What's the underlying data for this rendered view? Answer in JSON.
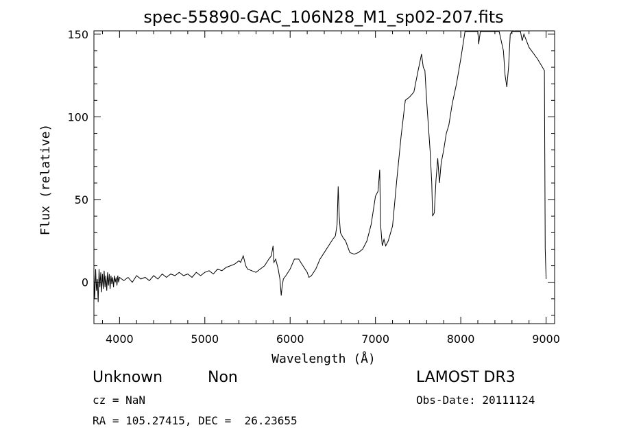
{
  "chart_data": {
    "type": "line",
    "title": "spec-55890-GAC_106N28_M1_sp02-207.fits",
    "xlabel": "Wavelength (Å)",
    "ylabel": "Flux (relative)",
    "xlim": [
      3700,
      9100
    ],
    "ylim": [
      -25,
      152
    ],
    "xticks": [
      4000,
      5000,
      6000,
      7000,
      8000,
      9000
    ],
    "yticks": [
      0,
      50,
      100,
      150
    ],
    "x_minor_step": 200,
    "y_minor_step": 10,
    "grid": false,
    "line_color": "#000000",
    "series": [
      {
        "points": [
          [
            3700,
            5
          ],
          [
            3710,
            -10
          ],
          [
            3720,
            8
          ],
          [
            3730,
            -5
          ],
          [
            3740,
            2
          ],
          [
            3750,
            -12
          ],
          [
            3760,
            8
          ],
          [
            3770,
            -3
          ],
          [
            3780,
            6
          ],
          [
            3790,
            -6
          ],
          [
            3800,
            5
          ],
          [
            3810,
            -4
          ],
          [
            3820,
            7
          ],
          [
            3830,
            -3
          ],
          [
            3840,
            4
          ],
          [
            3850,
            -5
          ],
          [
            3860,
            6
          ],
          [
            3870,
            -2
          ],
          [
            3880,
            5
          ],
          [
            3890,
            -4
          ],
          [
            3900,
            4
          ],
          [
            3910,
            -1
          ],
          [
            3920,
            3
          ],
          [
            3930,
            -3
          ],
          [
            3940,
            4
          ],
          [
            3950,
            0
          ],
          [
            3960,
            3
          ],
          [
            3970,
            -2
          ],
          [
            3980,
            4
          ],
          [
            3990,
            0
          ],
          [
            4000,
            3
          ],
          [
            4050,
            1
          ],
          [
            4100,
            3
          ],
          [
            4150,
            0
          ],
          [
            4200,
            4
          ],
          [
            4250,
            2
          ],
          [
            4300,
            3
          ],
          [
            4350,
            1
          ],
          [
            4400,
            4
          ],
          [
            4450,
            2
          ],
          [
            4500,
            5
          ],
          [
            4550,
            3
          ],
          [
            4600,
            5
          ],
          [
            4650,
            4
          ],
          [
            4700,
            6
          ],
          [
            4750,
            4
          ],
          [
            4800,
            5
          ],
          [
            4850,
            3
          ],
          [
            4900,
            6
          ],
          [
            4950,
            4
          ],
          [
            5000,
            6
          ],
          [
            5050,
            7
          ],
          [
            5100,
            5
          ],
          [
            5150,
            8
          ],
          [
            5200,
            7
          ],
          [
            5250,
            9
          ],
          [
            5300,
            10
          ],
          [
            5350,
            11
          ],
          [
            5400,
            13
          ],
          [
            5420,
            12
          ],
          [
            5450,
            16
          ],
          [
            5460,
            14
          ],
          [
            5480,
            10
          ],
          [
            5500,
            8
          ],
          [
            5550,
            7
          ],
          [
            5600,
            6
          ],
          [
            5650,
            8
          ],
          [
            5700,
            10
          ],
          [
            5750,
            14
          ],
          [
            5780,
            16
          ],
          [
            5800,
            22
          ],
          [
            5810,
            12
          ],
          [
            5830,
            14
          ],
          [
            5860,
            8
          ],
          [
            5880,
            2
          ],
          [
            5895,
            -8
          ],
          [
            5905,
            -3
          ],
          [
            5920,
            2
          ],
          [
            5950,
            4
          ],
          [
            6000,
            8
          ],
          [
            6050,
            14
          ],
          [
            6100,
            14
          ],
          [
            6150,
            10
          ],
          [
            6200,
            6
          ],
          [
            6220,
            3
          ],
          [
            6250,
            4
          ],
          [
            6300,
            8
          ],
          [
            6350,
            14
          ],
          [
            6400,
            18
          ],
          [
            6450,
            22
          ],
          [
            6500,
            26
          ],
          [
            6530,
            28
          ],
          [
            6550,
            35
          ],
          [
            6563,
            58
          ],
          [
            6575,
            40
          ],
          [
            6590,
            30
          ],
          [
            6620,
            27
          ],
          [
            6650,
            25
          ],
          [
            6700,
            18
          ],
          [
            6750,
            17
          ],
          [
            6800,
            18
          ],
          [
            6850,
            20
          ],
          [
            6900,
            25
          ],
          [
            6950,
            35
          ],
          [
            7000,
            52
          ],
          [
            7030,
            55
          ],
          [
            7050,
            68
          ],
          [
            7060,
            35
          ],
          [
            7080,
            22
          ],
          [
            7100,
            26
          ],
          [
            7120,
            22
          ],
          [
            7150,
            25
          ],
          [
            7200,
            34
          ],
          [
            7250,
            62
          ],
          [
            7300,
            88
          ],
          [
            7350,
            110
          ],
          [
            7400,
            112
          ],
          [
            7450,
            115
          ],
          [
            7500,
            128
          ],
          [
            7540,
            138
          ],
          [
            7560,
            130
          ],
          [
            7580,
            128
          ],
          [
            7600,
            110
          ],
          [
            7620,
            95
          ],
          [
            7640,
            80
          ],
          [
            7660,
            60
          ],
          [
            7670,
            40
          ],
          [
            7690,
            42
          ],
          [
            7710,
            62
          ],
          [
            7730,
            75
          ],
          [
            7750,
            60
          ],
          [
            7770,
            72
          ],
          [
            7800,
            80
          ],
          [
            7830,
            90
          ],
          [
            7860,
            95
          ],
          [
            7900,
            108
          ],
          [
            7950,
            120
          ],
          [
            8000,
            135
          ],
          [
            8050,
            152
          ],
          [
            8100,
            152
          ],
          [
            8200,
            152
          ],
          [
            8210,
            144
          ],
          [
            8230,
            152
          ],
          [
            8400,
            152
          ],
          [
            8450,
            152
          ],
          [
            8500,
            140
          ],
          [
            8520,
            125
          ],
          [
            8540,
            118
          ],
          [
            8560,
            130
          ],
          [
            8580,
            150
          ],
          [
            8600,
            152
          ],
          [
            8700,
            152
          ],
          [
            8720,
            146
          ],
          [
            8740,
            150
          ],
          [
            8800,
            142
          ],
          [
            8900,
            135
          ],
          [
            8980,
            128
          ],
          [
            8990,
            20
          ],
          [
            9000,
            2
          ]
        ]
      }
    ]
  },
  "object_class": "Unknown",
  "object_subclass": "Non",
  "survey": "LAMOST DR3",
  "redshift_line": "cz = NaN",
  "obs_date_line": "Obs-Date: 20111124",
  "coords_line": "RA = 105.27415, DEC =  26.23655"
}
